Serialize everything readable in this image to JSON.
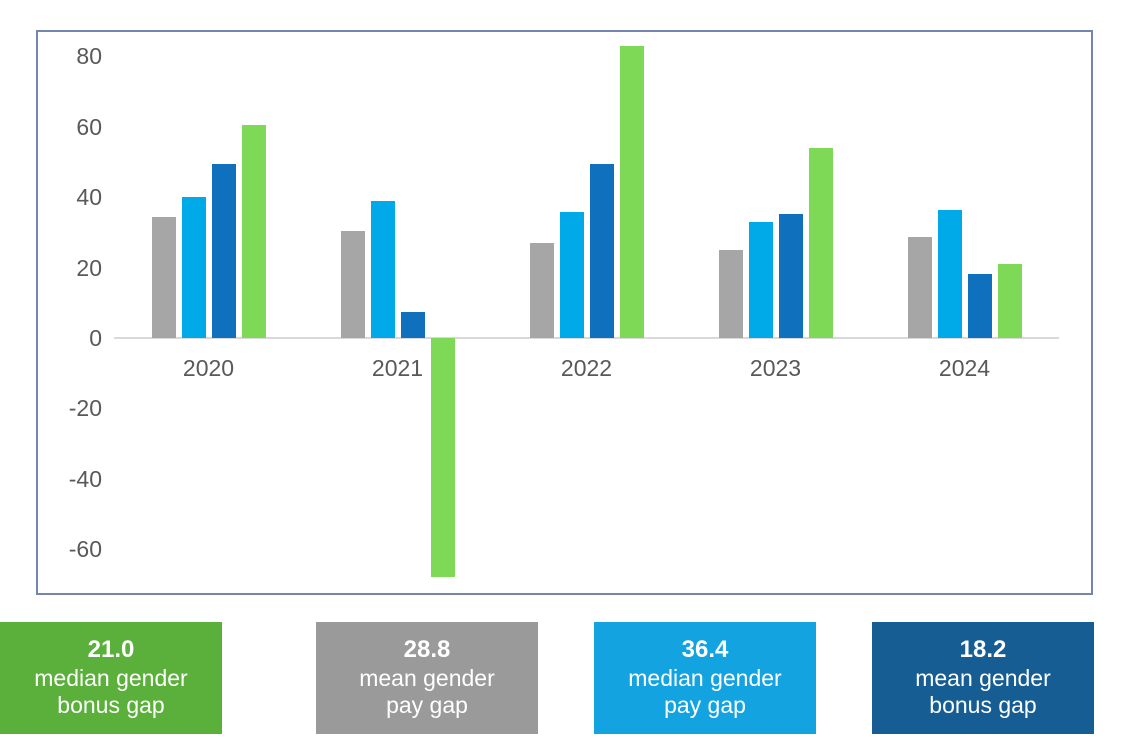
{
  "chart_data": {
    "type": "bar",
    "title": "",
    "xlabel": "",
    "ylabel": "",
    "categories": [
      "2020",
      "2021",
      "2022",
      "2023",
      "2024"
    ],
    "series": [
      {
        "name": "mean gender pay gap",
        "color": "#a6a6a6",
        "values": [
          34.5,
          30.5,
          27.0,
          25.0,
          28.8
        ]
      },
      {
        "name": "median gender pay gap",
        "color": "#00a9e8",
        "values": [
          40.0,
          38.8,
          35.7,
          33.0,
          36.4
        ]
      },
      {
        "name": "mean gender bonus gap",
        "color": "#0f70bd",
        "values": [
          49.5,
          7.5,
          49.5,
          35.3,
          18.2
        ]
      },
      {
        "name": "median gender bonus gap",
        "color": "#7ed957",
        "values": [
          60.5,
          -68.0,
          83.0,
          54.0,
          21.0
        ]
      }
    ],
    "yticks": [
      80,
      60,
      40,
      20,
      0,
      -20,
      -40,
      -60
    ],
    "ylim": [
      -73,
      87
    ],
    "grid": false,
    "legend_position": "cards-below-chart",
    "axis_line_color": "#d9d9d9",
    "tick_label_color": "#595959",
    "frame_border_color": "#7585ad"
  },
  "legend": {
    "cards": [
      {
        "value": "28.8",
        "label_line1": "mean gender",
        "label_line2": "pay gap",
        "color": "#9a9a9a"
      },
      {
        "value": "36.4",
        "label_line1": "median gender",
        "label_line2": "pay gap",
        "color": "#14a3e1"
      },
      {
        "value": "18.2",
        "label_line1": "mean gender",
        "label_line2": "bonus gap",
        "color": "#155d92"
      },
      {
        "value": "21.0",
        "label_line1": "median gender",
        "label_line2": "bonus gap",
        "color": "#5ab03a"
      }
    ]
  }
}
